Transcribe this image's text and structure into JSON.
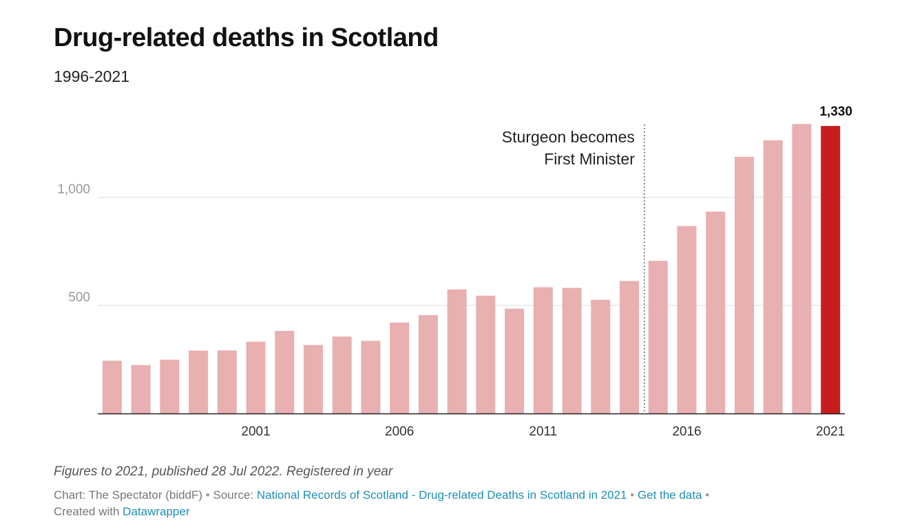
{
  "header": {
    "title": "Drug-related deaths in Scotland",
    "subtitle": "1996-2021"
  },
  "chart_data": {
    "type": "bar",
    "categories": [
      "1996",
      "1997",
      "1998",
      "1999",
      "2000",
      "2001",
      "2002",
      "2003",
      "2004",
      "2005",
      "2006",
      "2007",
      "2008",
      "2009",
      "2010",
      "2011",
      "2012",
      "2013",
      "2014",
      "2015",
      "2016",
      "2017",
      "2018",
      "2019",
      "2020",
      "2021"
    ],
    "values": [
      244,
      224,
      249,
      291,
      292,
      332,
      382,
      317,
      356,
      336,
      421,
      455,
      574,
      545,
      485,
      584,
      581,
      526,
      613,
      706,
      867,
      934,
      1187,
      1264,
      1339,
      1330
    ],
    "x_tick_labels": [
      "2001",
      "2006",
      "2011",
      "2016",
      "2021"
    ],
    "y_ticks": [
      500,
      1000
    ],
    "y_tick_labels": [
      "500",
      "1,000"
    ],
    "ylim": [
      0,
      1360
    ],
    "grid": true,
    "colors": {
      "bar": "#e8b0b0",
      "highlight": "#c91d1d",
      "gridline": "#dddddd",
      "axis": "#222222",
      "annotation_line": "#888888"
    },
    "highlight": {
      "category": "2021",
      "label": "1,330"
    },
    "annotation": {
      "after_category": "2014",
      "lines": [
        "Sturgeon becomes",
        "First Minister"
      ]
    }
  },
  "footer": {
    "notes": "Figures to 2021, published 28 Jul 2022. Registered in year",
    "chart_prefix": "Chart: The Spectator (biddF)",
    "source_prefix": "Source:",
    "source_link": "National Records of Scotland - Drug-related Deaths in Scotland in 2021",
    "get_data_link": "Get the data",
    "created_prefix": "Created with",
    "created_link": "Datawrapper"
  }
}
